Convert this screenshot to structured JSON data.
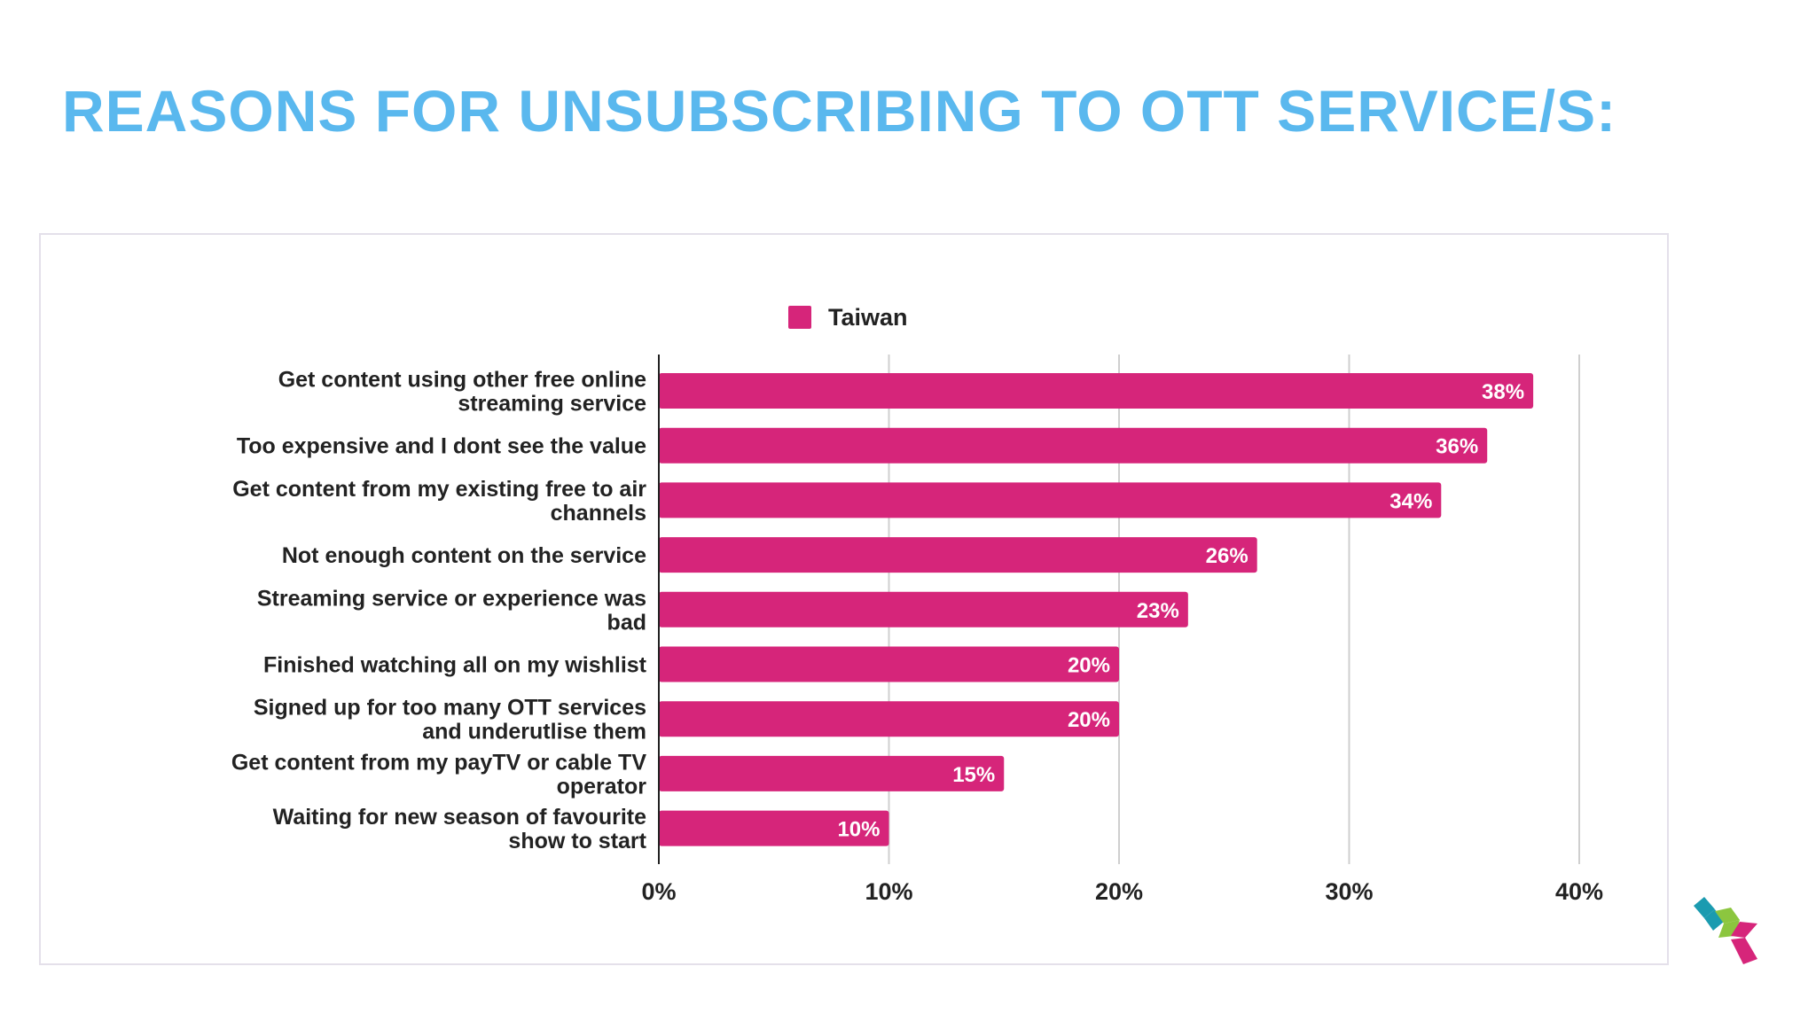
{
  "page": {
    "title": "REASONS FOR UNSUBSCRIBING TO OTT SERVICE/S:"
  },
  "colors": {
    "title": "#5ab8ee",
    "bar": "#d6257a",
    "grid": "#cfcfcf",
    "axis": "#222222",
    "label_text": "#222222",
    "value_label_text": "#ffffff",
    "logo_teal": "#1b9bb0",
    "logo_green": "#8cc63f",
    "logo_pink": "#d6257a"
  },
  "chart_data": {
    "type": "bar",
    "orientation": "horizontal",
    "title": "",
    "xlabel": "",
    "ylabel": "",
    "xlim": [
      0,
      40
    ],
    "x_ticks": [
      "0%",
      "10%",
      "20%",
      "30%",
      "40%"
    ],
    "grid": true,
    "legend_position": "top",
    "categories": [
      [
        "Get content using other free online",
        "streaming service"
      ],
      [
        "Too expensive and I dont see the value"
      ],
      [
        "Get content from my existing free to air",
        "channels"
      ],
      [
        "Not enough content on the service"
      ],
      [
        "Streaming service or experience was",
        "bad"
      ],
      [
        "Finished watching all on my wishlist"
      ],
      [
        "Signed up for too many OTT services",
        "and underutlise them"
      ],
      [
        "Get content from my payTV or cable TV",
        "operator"
      ],
      [
        "Waiting for new season of favourite",
        "show to start"
      ]
    ],
    "series": [
      {
        "name": "Taiwan",
        "values": [
          38,
          36,
          34,
          26,
          23,
          20,
          20,
          15,
          10
        ],
        "labels": [
          "38%",
          "36%",
          "34%",
          "26%",
          "23%",
          "20%",
          "20%",
          "15%",
          "10%"
        ]
      }
    ]
  },
  "logo": {
    "icon": "stacked-cubes-logo-icon"
  }
}
